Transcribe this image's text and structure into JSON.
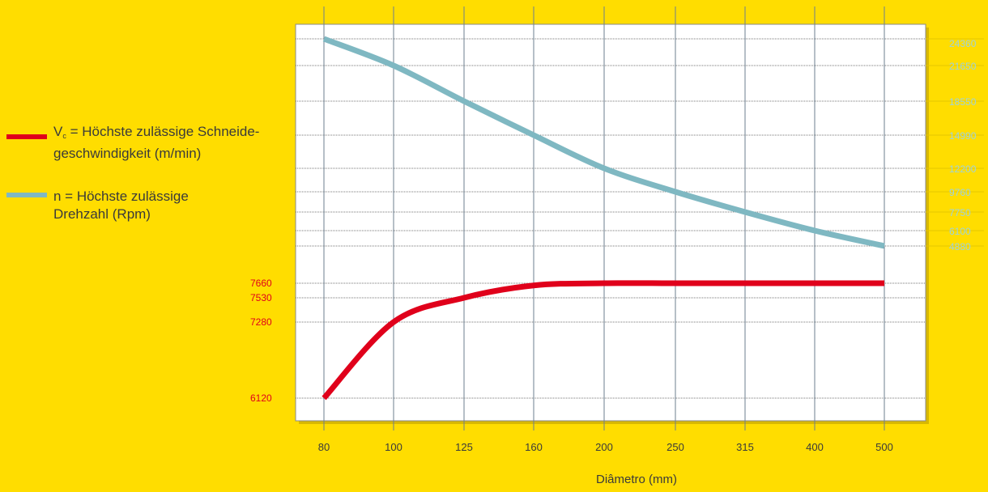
{
  "legend": {
    "vc": {
      "symbol": "V",
      "subscript": "c",
      "line1": " = Höchste zulässige Schneide-",
      "line2": "geschwindigkeit  (m/min)",
      "color": "#e0001b"
    },
    "n": {
      "line1": "n = Höchste zulässige",
      "line2": "Drehzahl (Rpm)",
      "color": "#7fb8c2"
    }
  },
  "chart_data": {
    "type": "line",
    "categories": [
      "80",
      "100",
      "125",
      "160",
      "200",
      "250",
      "315",
      "400",
      "500"
    ],
    "xlabel": "Diâmetro (mm)",
    "left_ticks": [
      7660,
      7530,
      7280,
      6120
    ],
    "right_ticks": [
      24360,
      21650,
      18550,
      14990,
      12200,
      9760,
      7750,
      6100,
      4880
    ],
    "series": [
      {
        "key": "vc",
        "axis": "left",
        "color": "#e0001b",
        "values": [
          6120,
          7280,
          7530,
          7640,
          7660,
          7660,
          7660,
          7660,
          7660
        ]
      },
      {
        "key": "n",
        "axis": "right",
        "color": "#7fb8c2",
        "values": [
          24360,
          21650,
          18550,
          14990,
          12200,
          9760,
          7750,
          6100,
          4880
        ]
      }
    ],
    "left_label_color": "#e0001b",
    "right_label_color": "#9ed3dc",
    "grid": true,
    "legend_position": "left"
  }
}
